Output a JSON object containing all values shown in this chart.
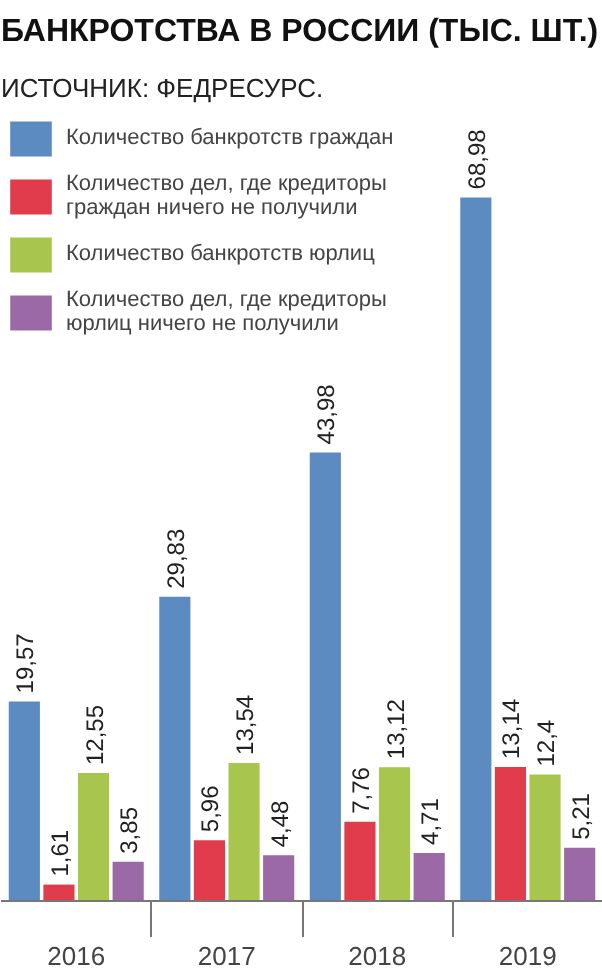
{
  "chart_data": {
    "type": "bar",
    "title": "БАНКРОТСТВА В РОССИИ (ТЫС. ШТ.)",
    "subtitle": "ИСТОЧНИК: ФЕДРЕСУРС.",
    "categories": [
      "2016",
      "2017",
      "2018",
      "2019"
    ],
    "series": [
      {
        "name": "Количество банкротств граждан",
        "color": "#5b8bc0",
        "values": [
          19.57,
          29.83,
          43.98,
          68.98
        ],
        "value_labels": [
          "19,57",
          "29,83",
          "43,98",
          "68,98"
        ]
      },
      {
        "name": "Количество дел, где кредиторы граждан ничего не получили",
        "color": "#e03c4b",
        "values": [
          1.61,
          5.96,
          7.76,
          13.14
        ],
        "value_labels": [
          "1,61",
          "5,96",
          "7,76",
          "13,14"
        ]
      },
      {
        "name": "Количество банкротств юрлиц",
        "color": "#a8c64e",
        "values": [
          12.55,
          13.54,
          13.12,
          12.4
        ],
        "value_labels": [
          "12,55",
          "13,54",
          "13,12",
          "12,4"
        ]
      },
      {
        "name": "Количество дел, где кредиторы юрлиц ничего не получили",
        "color": "#9b6aa6",
        "values": [
          3.85,
          4.48,
          4.71,
          5.21
        ],
        "value_labels": [
          "3,85",
          "4,48",
          "4,71",
          "5,21"
        ]
      }
    ],
    "legend": "top left",
    "grid": false
  }
}
